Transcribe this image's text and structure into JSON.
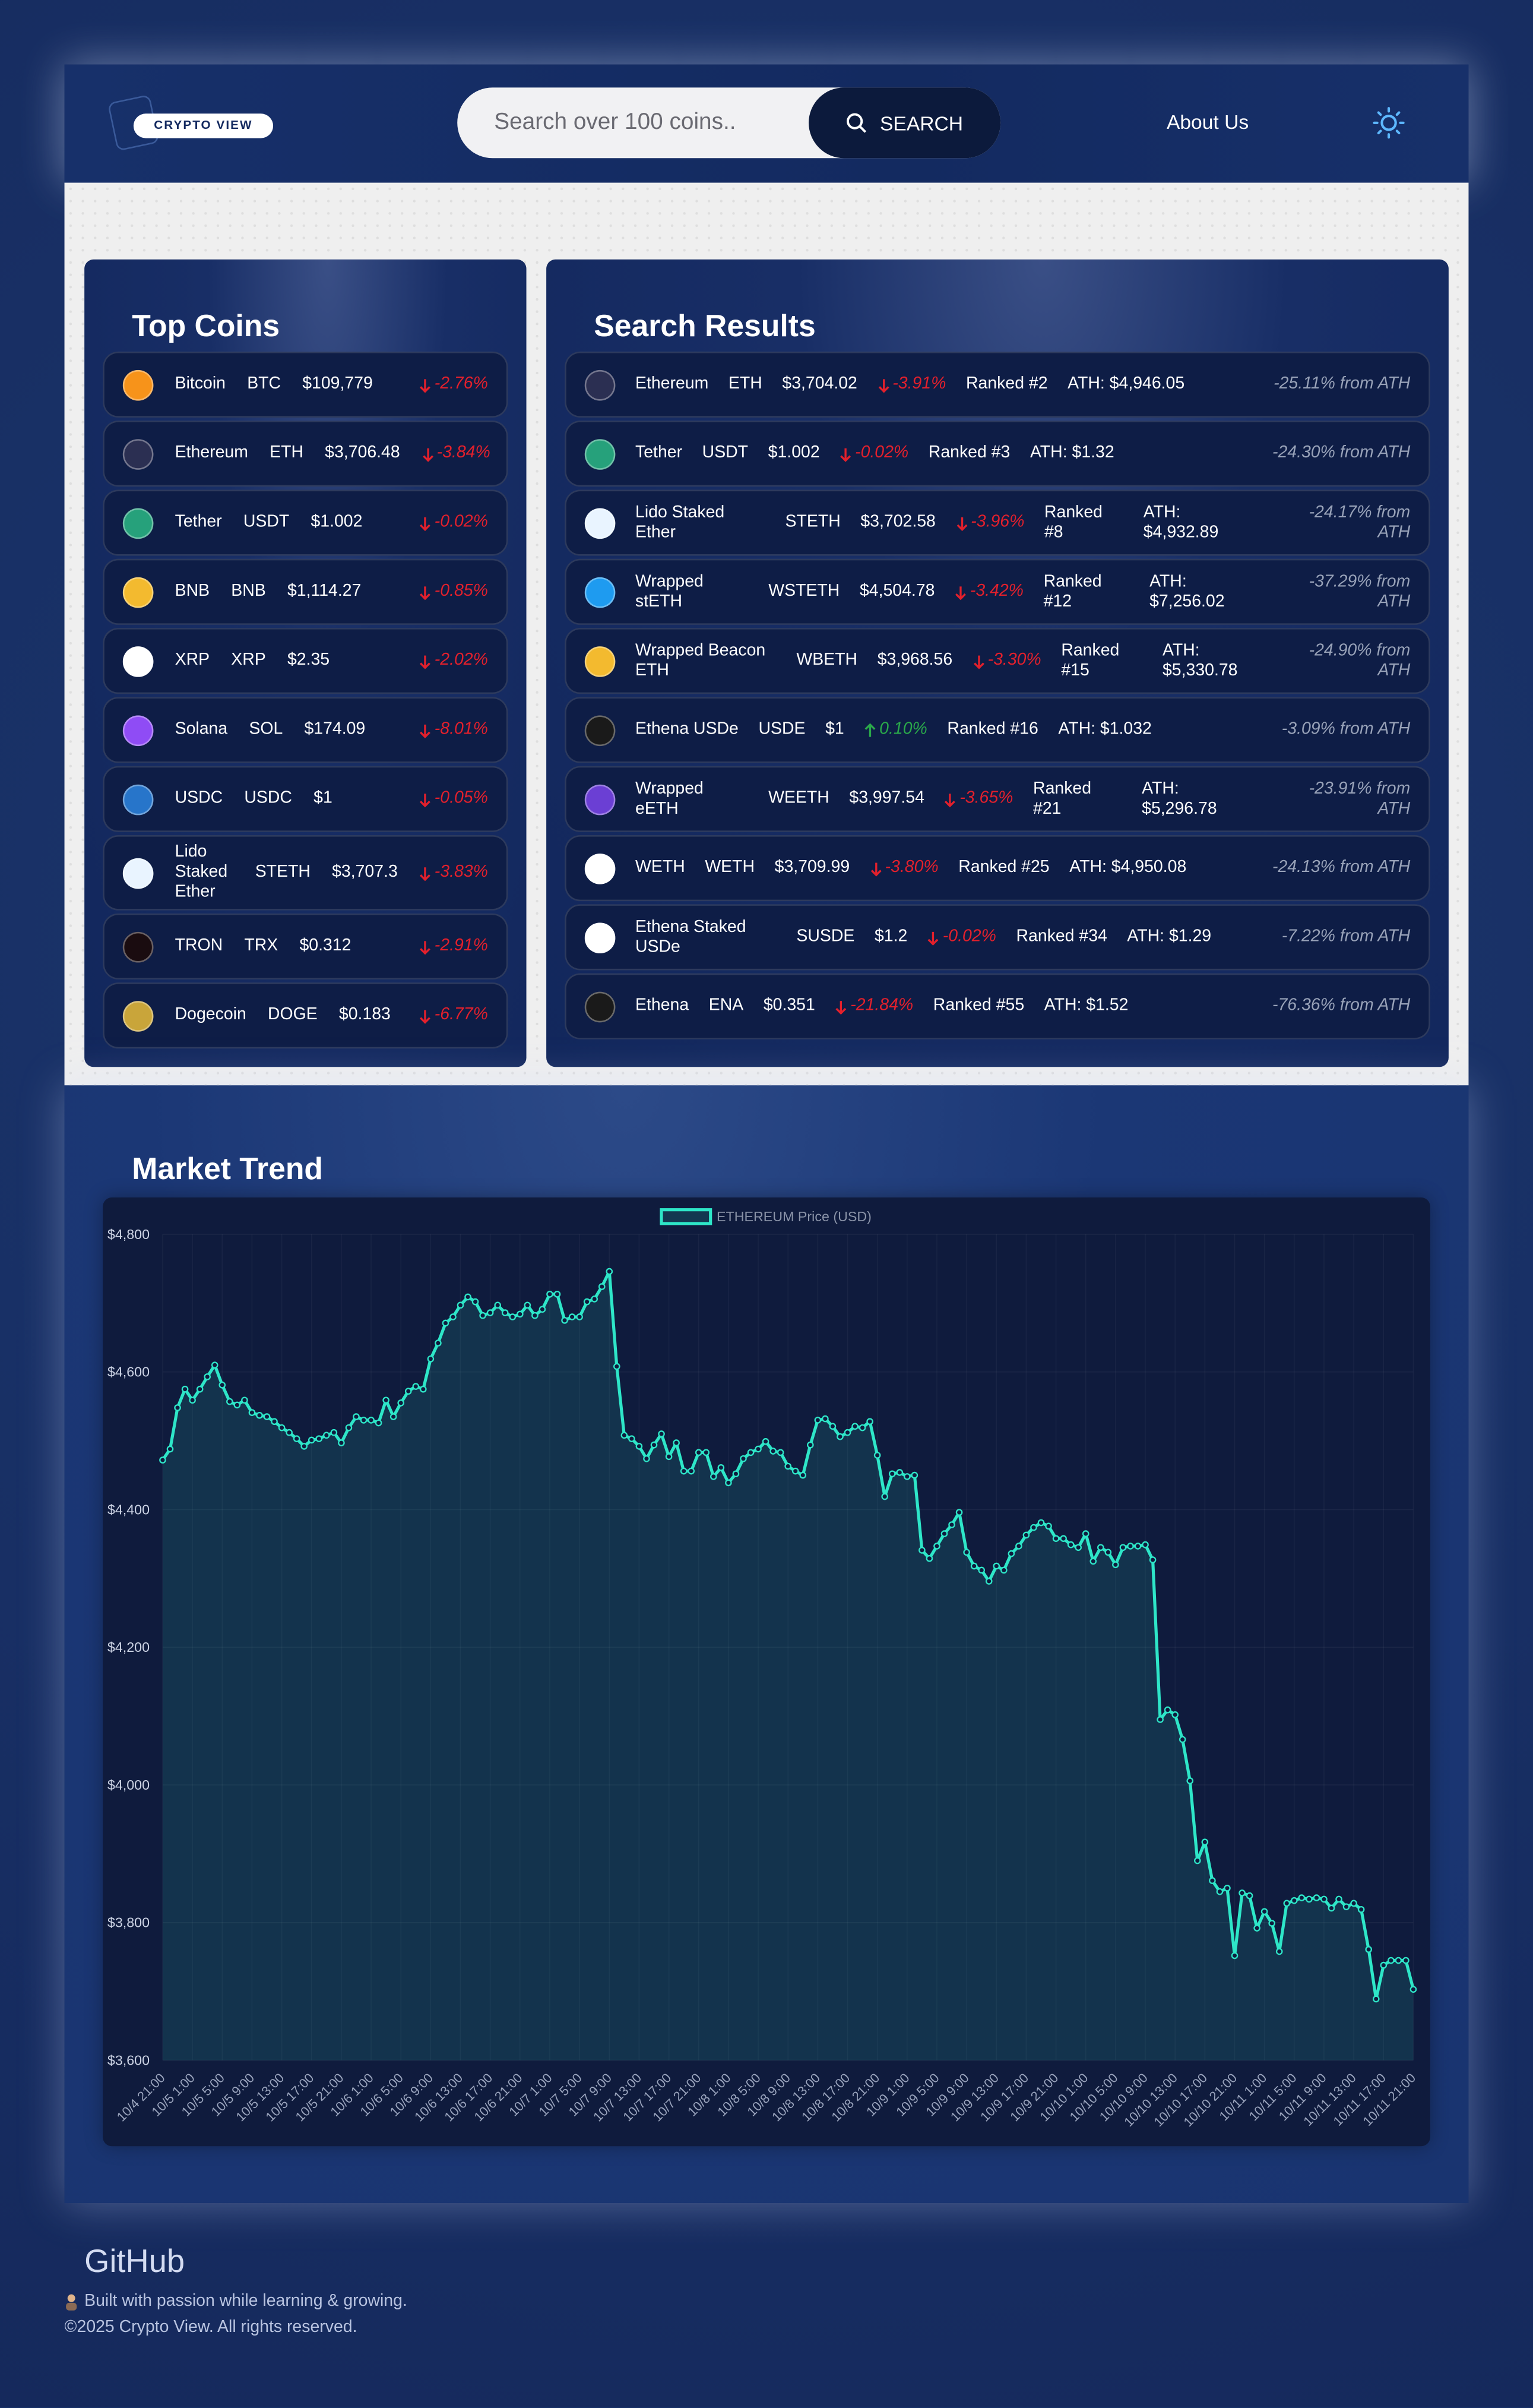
{
  "header": {
    "logo": "CRYPTO VIEW",
    "search_placeholder": "Search over 100 coins..",
    "search_button": "SEARCH",
    "nav_link": "About Us"
  },
  "top_coins": {
    "title": "Top Coins",
    "rows": [
      {
        "name": "Bitcoin",
        "symbol": "BTC",
        "price": "$109,779",
        "change": "-2.76%"
      },
      {
        "name": "Ethereum",
        "symbol": "ETH",
        "price": "$3,706.48",
        "change": "-3.84%"
      },
      {
        "name": "Tether",
        "symbol": "USDT",
        "price": "$1.002",
        "change": "-0.02%"
      },
      {
        "name": "BNB",
        "symbol": "BNB",
        "price": "$1,114.27",
        "change": "-0.85%"
      },
      {
        "name": "XRP",
        "symbol": "XRP",
        "price": "$2.35",
        "change": "-2.02%"
      },
      {
        "name": "Solana",
        "symbol": "SOL",
        "price": "$174.09",
        "change": "-8.01%"
      },
      {
        "name": "USDC",
        "symbol": "USDC",
        "price": "$1",
        "change": "-0.05%"
      },
      {
        "name": "Lido Staked Ether",
        "symbol": "STETH",
        "price": "$3,707.3",
        "change": "-3.83%"
      },
      {
        "name": "TRON",
        "symbol": "TRX",
        "price": "$0.312",
        "change": "-2.91%"
      },
      {
        "name": "Dogecoin",
        "symbol": "DOGE",
        "price": "$0.183",
        "change": "-6.77%"
      }
    ]
  },
  "search_results": {
    "title": "Search Results",
    "rows": [
      {
        "name": "Ethereum",
        "symbol": "ETH",
        "price": "$3,704.02",
        "change": "-3.91%",
        "rank": "Ranked #2",
        "ath": "ATH: $4,946.05",
        "from_ath": "-25.11% from ATH"
      },
      {
        "name": "Tether",
        "symbol": "USDT",
        "price": "$1.002",
        "change": "-0.02%",
        "rank": "Ranked #3",
        "ath": "ATH: $1.32",
        "from_ath": "-24.30% from ATH"
      },
      {
        "name": "Lido Staked Ether",
        "symbol": "STETH",
        "price": "$3,702.58",
        "change": "-3.96%",
        "rank": "Ranked #8",
        "ath": "ATH: $4,932.89",
        "from_ath": "-24.17% from ATH"
      },
      {
        "name": "Wrapped stETH",
        "symbol": "WSTETH",
        "price": "$4,504.78",
        "change": "-3.42%",
        "rank": "Ranked #12",
        "ath": "ATH: $7,256.02",
        "from_ath": "-37.29% from ATH"
      },
      {
        "name": "Wrapped Beacon ETH",
        "symbol": "WBETH",
        "price": "$3,968.56",
        "change": "-3.30%",
        "rank": "Ranked #15",
        "ath": "ATH: $5,330.78",
        "from_ath": "-24.90% from ATH"
      },
      {
        "name": "Ethena USDe",
        "symbol": "USDE",
        "price": "$1",
        "change": "0.10%",
        "rank": "Ranked #16",
        "ath": "ATH: $1.032",
        "from_ath": "-3.09% from ATH"
      },
      {
        "name": "Wrapped eETH",
        "symbol": "WEETH",
        "price": "$3,997.54",
        "change": "-3.65%",
        "rank": "Ranked #21",
        "ath": "ATH: $5,296.78",
        "from_ath": "-23.91% from ATH"
      },
      {
        "name": "WETH",
        "symbol": "WETH",
        "price": "$3,709.99",
        "change": "-3.80%",
        "rank": "Ranked #25",
        "ath": "ATH: $4,950.08",
        "from_ath": "-24.13% from ATH"
      },
      {
        "name": "Ethena Staked USDe",
        "symbol": "SUSDE",
        "price": "$1.2",
        "change": "-0.02%",
        "rank": "Ranked #34",
        "ath": "ATH: $1.29",
        "from_ath": "-7.22% from ATH"
      },
      {
        "name": "Ethena",
        "symbol": "ENA",
        "price": "$0.351",
        "change": "-21.84%",
        "rank": "Ranked #55",
        "ath": "ATH: $1.52",
        "from_ath": "-76.36% from ATH"
      }
    ]
  },
  "market_trend": {
    "title": "Market Trend",
    "chart_data": {
      "type": "line",
      "legend": "top",
      "grid": true,
      "ylim": [
        3600,
        4800
      ],
      "yticks": [
        {
          "value": 3600,
          "label": "$3,600"
        },
        {
          "value": 3800,
          "label": "$3,800"
        },
        {
          "value": 4000,
          "label": "$4,000"
        },
        {
          "value": 4200,
          "label": "$4,200"
        },
        {
          "value": 4400,
          "label": "$4,400"
        },
        {
          "value": 4600,
          "label": "$4,600"
        },
        {
          "value": 4800,
          "label": "$4,800"
        }
      ],
      "categories": [
        "10/4 21:00",
        null,
        null,
        null,
        "10/5 1:00",
        null,
        null,
        null,
        "10/5 5:00",
        null,
        null,
        null,
        "10/5 9:00",
        null,
        null,
        null,
        "10/5 13:00",
        null,
        null,
        null,
        "10/5 17:00",
        null,
        null,
        null,
        "10/5 21:00",
        null,
        null,
        null,
        "10/6 1:00",
        null,
        null,
        null,
        "10/6 5:00",
        null,
        null,
        null,
        "10/6 9:00",
        null,
        null,
        null,
        "10/6 13:00",
        null,
        null,
        null,
        "10/6 17:00",
        null,
        null,
        null,
        "10/6 21:00",
        null,
        null,
        null,
        "10/7 1:00",
        null,
        null,
        null,
        "10/7 5:00",
        null,
        null,
        null,
        "10/7 9:00",
        null,
        null,
        null,
        "10/7 13:00",
        null,
        null,
        null,
        "10/7 17:00",
        null,
        null,
        null,
        "10/7 21:00",
        null,
        null,
        null,
        "10/8 1:00",
        null,
        null,
        null,
        "10/8 5:00",
        null,
        null,
        null,
        "10/8 9:00",
        null,
        null,
        null,
        "10/8 13:00",
        null,
        null,
        null,
        "10/8 17:00",
        null,
        null,
        null,
        "10/8 21:00",
        null,
        null,
        null,
        "10/9 1:00",
        null,
        null,
        null,
        "10/9 5:00",
        null,
        null,
        null,
        "10/9 9:00",
        null,
        null,
        null,
        "10/9 13:00",
        null,
        null,
        null,
        "10/9 17:00",
        null,
        null,
        null,
        "10/9 21:00",
        null,
        null,
        null,
        "10/10 1:00",
        null,
        null,
        null,
        "10/10 5:00",
        null,
        null,
        null,
        "10/10 9:00",
        null,
        null,
        null,
        "10/10 13:00",
        null,
        null,
        null,
        "10/10 17:00",
        null,
        null,
        null,
        "10/10 21:00",
        null,
        null,
        null,
        "10/11 1:00",
        null,
        null,
        null,
        "10/11 5:00",
        null,
        null,
        null,
        "10/11 9:00",
        null,
        null,
        null,
        "10/11 13:00",
        null,
        null,
        null,
        "10/11 17:00",
        null,
        null,
        null,
        "10/11 21:00"
      ],
      "series": [
        {
          "name": "ETHEREUM Price (USD)",
          "color": "#2ee6c8",
          "values": [
            4472,
            4488,
            4548,
            4575,
            4559,
            4575,
            4593,
            4610,
            4581,
            4557,
            4552,
            4559,
            4541,
            4537,
            4535,
            4528,
            4519,
            4512,
            4503,
            4492,
            4501,
            4503,
            4508,
            4512,
            4497,
            4519,
            4535,
            4530,
            4530,
            4526,
            4559,
            4535,
            4555,
            4572,
            4579,
            4575,
            4619,
            4642,
            4671,
            4680,
            4697,
            4709,
            4702,
            4682,
            4686,
            4697,
            4686,
            4680,
            4684,
            4697,
            4682,
            4691,
            4713,
            4713,
            4675,
            4680,
            4680,
            4702,
            4706,
            4724,
            4746,
            4608,
            4508,
            4503,
            4492,
            4474,
            4494,
            4510,
            4477,
            4497,
            4456,
            4456,
            4483,
            4483,
            4448,
            4461,
            4439,
            4452,
            4474,
            4483,
            4488,
            4499,
            4485,
            4483,
            4463,
            4456,
            4450,
            4494,
            4530,
            4532,
            4521,
            4506,
            4512,
            4521,
            4519,
            4528,
            4479,
            4419,
            4452,
            4454,
            4448,
            4450,
            4341,
            4329,
            4347,
            4365,
            4378,
            4396,
            4338,
            4318,
            4312,
            4296,
            4318,
            4312,
            4336,
            4347,
            4363,
            4374,
            4381,
            4376,
            4358,
            4358,
            4349,
            4345,
            4365,
            4325,
            4345,
            4338,
            4320,
            4345,
            4347,
            4347,
            4349,
            4327,
            4095,
            4109,
            4102,
            4066,
            4006,
            3890,
            3917,
            3861,
            3845,
            3850,
            3752,
            3843,
            3839,
            3792,
            3816,
            3799,
            3758,
            3828,
            3832,
            3836,
            3834,
            3836,
            3834,
            3821,
            3834,
            3823,
            3828,
            3819,
            3761,
            3689,
            3738,
            3745,
            3745,
            3745,
            3703
          ]
        }
      ]
    }
  },
  "footer": {
    "github": "GitHub",
    "tagline": "Built with passion while learning & growing.",
    "copyright": "©2025 Crypto View. All rights reserved."
  }
}
